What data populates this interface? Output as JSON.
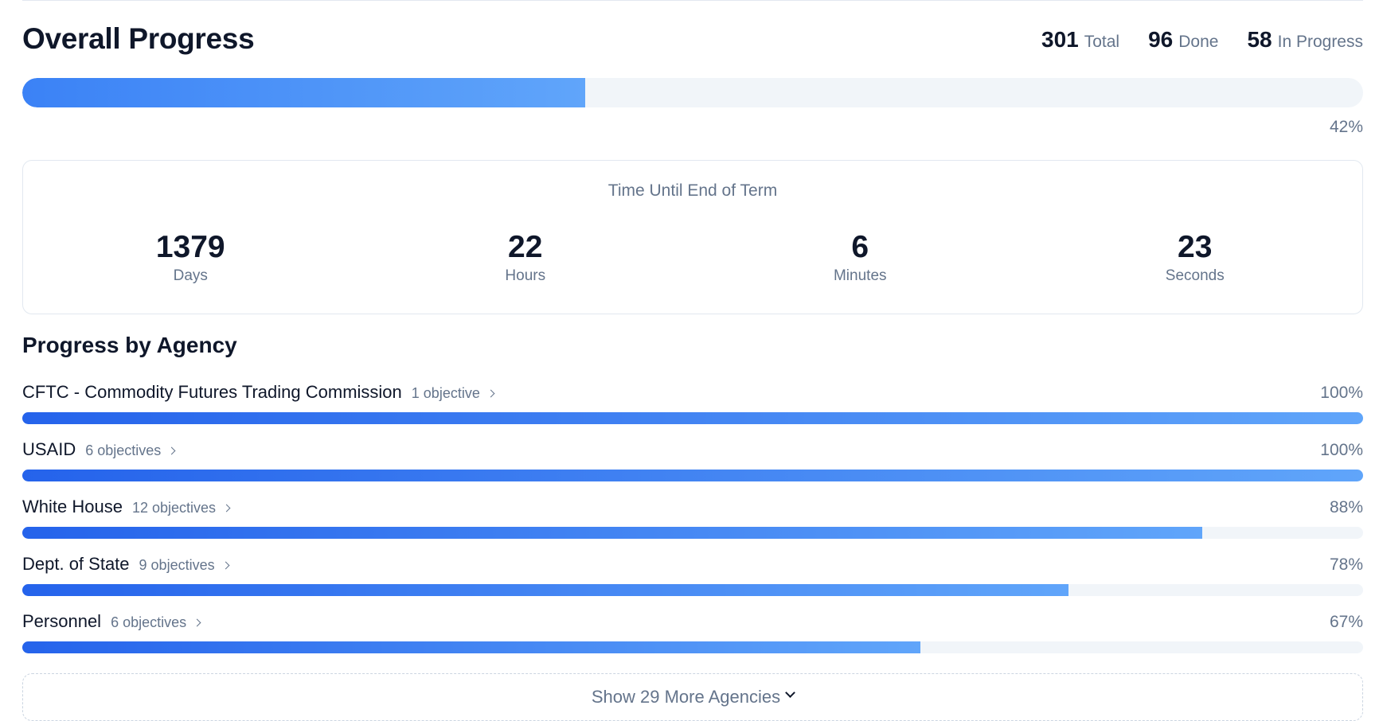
{
  "overall": {
    "title": "Overall Progress",
    "stats": [
      {
        "value": "301",
        "label": "Total"
      },
      {
        "value": "96",
        "label": "Done"
      },
      {
        "value": "58",
        "label": "In Progress"
      }
    ],
    "percent_label": "42%",
    "percent": 42
  },
  "countdown": {
    "title": "Time Until End of Term",
    "units": [
      {
        "value": "1379",
        "label": "Days"
      },
      {
        "value": "22",
        "label": "Hours"
      },
      {
        "value": "6",
        "label": "Minutes"
      },
      {
        "value": "23",
        "label": "Seconds"
      }
    ]
  },
  "agencies": {
    "title": "Progress by Agency",
    "items": [
      {
        "name": "CFTC - Commodity Futures Trading Commission",
        "objectives": "1 objective",
        "percent_label": "100%",
        "percent": 100
      },
      {
        "name": "USAID",
        "objectives": "6 objectives",
        "percent_label": "100%",
        "percent": 100
      },
      {
        "name": "White House",
        "objectives": "12 objectives",
        "percent_label": "88%",
        "percent": 88
      },
      {
        "name": "Dept. of State",
        "objectives": "9 objectives",
        "percent_label": "78%",
        "percent": 78
      },
      {
        "name": "Personnel",
        "objectives": "6 objectives",
        "percent_label": "67%",
        "percent": 67
      }
    ],
    "show_more_label": "Show 29 More Agencies"
  },
  "colors": {
    "accent_start": "#2563eb",
    "accent_end": "#60a5fa",
    "track": "#f1f5f9"
  },
  "icons": {
    "objective_link": "chevron-right-icon",
    "show_more": "chevron-down-icon"
  }
}
